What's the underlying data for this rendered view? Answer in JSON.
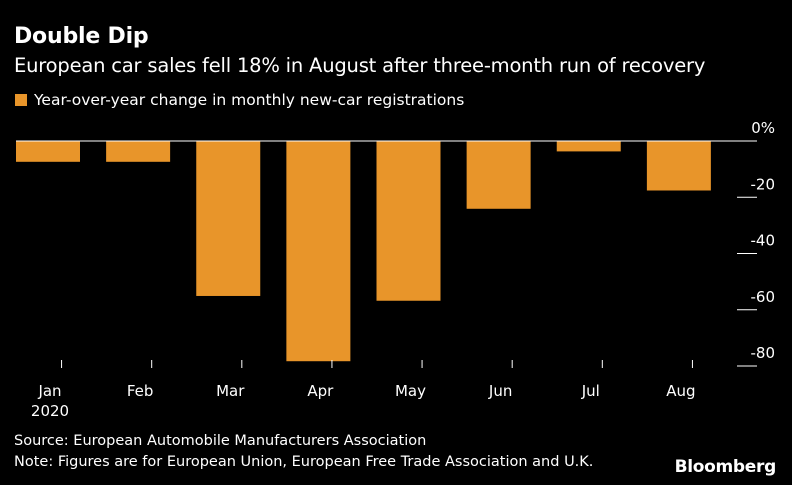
{
  "header": {
    "title": "Double Dip",
    "subtitle": "European car sales fell 18% in August after three-month run of recovery"
  },
  "legend": {
    "label": "Year-over-year change in monthly new-car registrations"
  },
  "footer": {
    "source": "Source: European Automobile Manufacturers Association",
    "note": "Note: Figures are for European Union, European Free Trade Association and U.K.",
    "brand": "Bloomberg"
  },
  "colors": {
    "bar": "#e8952a",
    "background": "#000000",
    "text": "#ffffff",
    "axis": "#ffffff"
  },
  "chart_data": {
    "type": "bar",
    "title": "Double Dip",
    "categories": [
      "Jan",
      "Feb",
      "Mar",
      "Apr",
      "May",
      "Jun",
      "Jul",
      "Aug"
    ],
    "category_sublabels": [
      "2020",
      "",
      "",
      "",
      "",
      "",
      "",
      ""
    ],
    "values": [
      -7.4,
      -7.4,
      -55.1,
      -78.3,
      -56.8,
      -24.1,
      -3.7,
      -17.6
    ],
    "yticks": [
      0,
      -20,
      -40,
      -60,
      -80
    ],
    "ytick_labels": [
      "0%",
      "-20",
      "-40",
      "-60",
      "-80"
    ],
    "ylim": [
      -80,
      0
    ],
    "ylabel": "",
    "xlabel": "",
    "legend": "Year-over-year change in monthly new-car registrations",
    "axis_side": "right"
  }
}
